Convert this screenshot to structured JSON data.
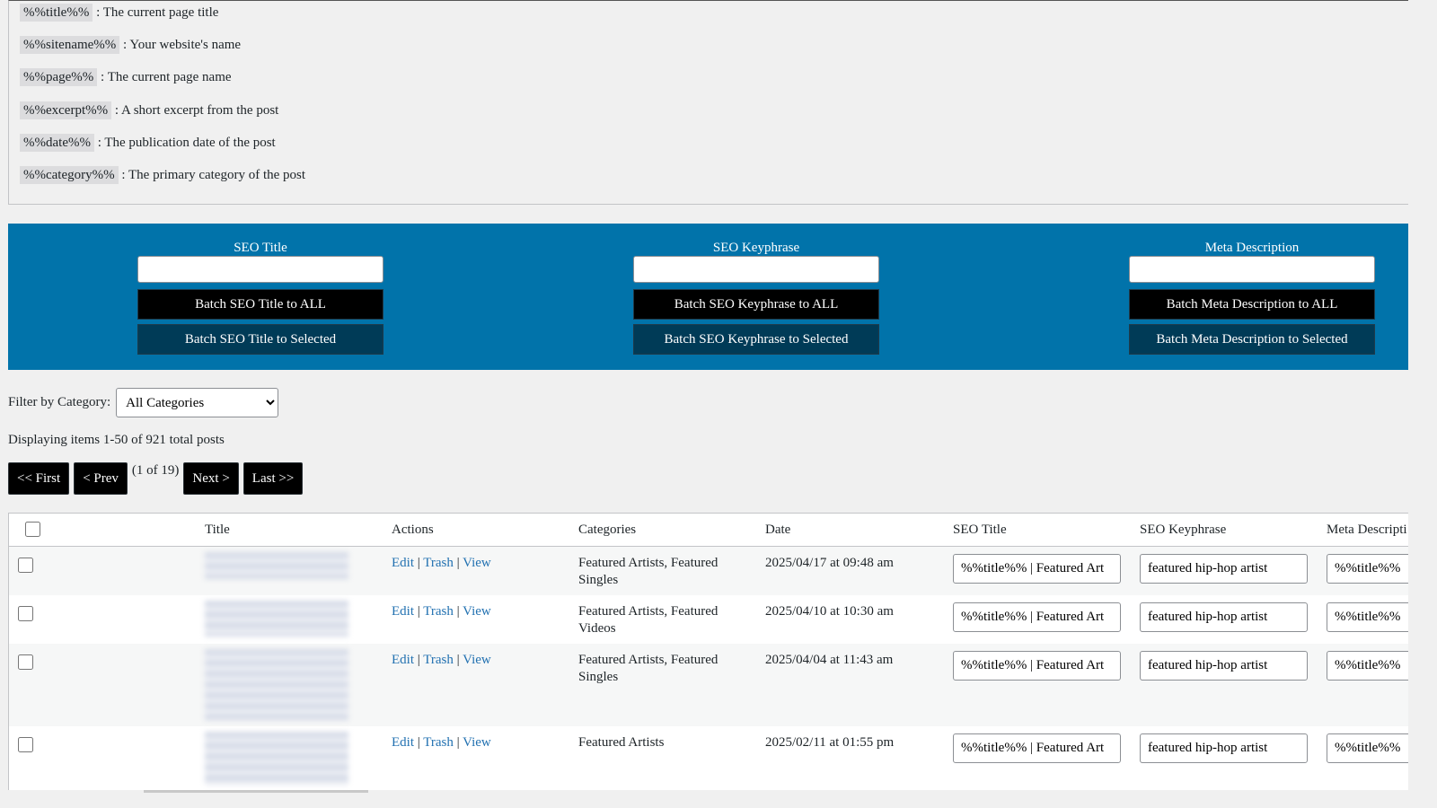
{
  "placeholders": [
    {
      "tag": "%%title%%",
      "desc": ": The current page title"
    },
    {
      "tag": "%%sitename%%",
      "desc": ": Your website's name"
    },
    {
      "tag": "%%page%%",
      "desc": ": The current page name"
    },
    {
      "tag": "%%excerpt%%",
      "desc": ": A short excerpt from the post"
    },
    {
      "tag": "%%date%%",
      "desc": ": The publication date of the post"
    },
    {
      "tag": "%%category%%",
      "desc": ": The primary category of the post"
    }
  ],
  "batch": [
    {
      "label": "SEO Title",
      "all": "Batch SEO Title to ALL",
      "selected": "Batch SEO Title to Selected"
    },
    {
      "label": "SEO Keyphrase",
      "all": "Batch SEO Keyphrase to ALL",
      "selected": "Batch SEO Keyphrase to Selected"
    },
    {
      "label": "Meta Description",
      "all": "Batch Meta Description to ALL",
      "selected": "Batch Meta Description to Selected"
    }
  ],
  "filter": {
    "label": "Filter by Category:",
    "selected": "All Categories"
  },
  "summary": "Displaying items 1-50 of 921 total posts",
  "pager": {
    "first": "<< First",
    "prev": "< Prev",
    "status": "(1 of 19)",
    "next": "Next >",
    "last": "Last >>"
  },
  "table": {
    "headers": [
      "Title",
      "Actions",
      "Categories",
      "Date",
      "SEO Title",
      "SEO Keyphrase",
      "Meta Descripti"
    ],
    "actions": [
      "Edit",
      "Trash",
      "View"
    ],
    "separator": "|",
    "rows": [
      {
        "categories": "Featured Artists, Featured Singles",
        "date": "2025/04/17 at 09:48 am",
        "seo_title": "%%title%% | Featured Art",
        "keyphrase": "featured hip-hop artist",
        "meta": "%%title%%"
      },
      {
        "categories": "Featured Artists, Featured Videos",
        "date": "2025/04/10 at 10:30 am",
        "seo_title": "%%title%% | Featured Art",
        "keyphrase": "featured hip-hop artist",
        "meta": "%%title%%"
      },
      {
        "categories": "Featured Artists, Featured Singles",
        "date": "2025/04/04 at 11:43 am",
        "seo_title": "%%title%% | Featured Art",
        "keyphrase": "featured hip-hop artist",
        "meta": "%%title%%"
      },
      {
        "categories": "Featured Artists",
        "date": "2025/02/11 at 01:55 pm",
        "seo_title": "%%title%% | Featured Art",
        "keyphrase": "featured hip-hop artist",
        "meta": "%%title%%"
      }
    ]
  }
}
